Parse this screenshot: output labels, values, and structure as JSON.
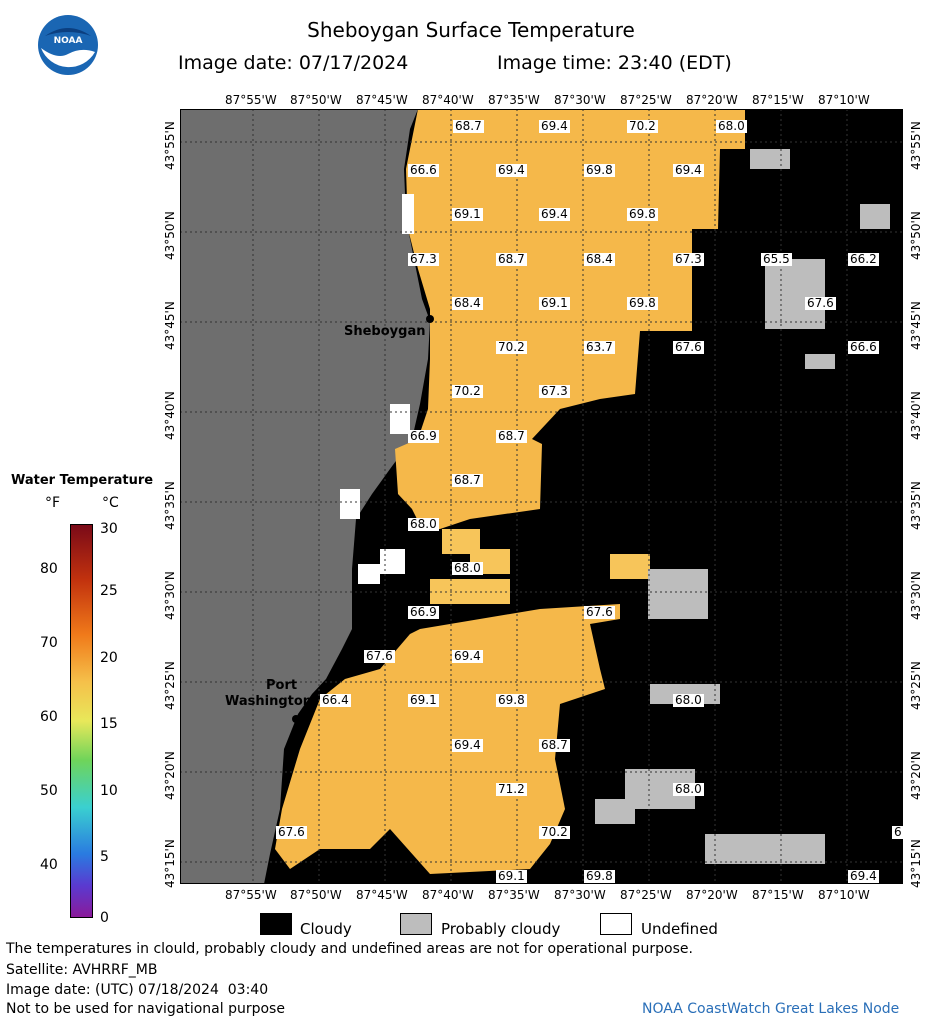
{
  "header": {
    "logo_text": "NOAA",
    "title": "Sheboygan Surface Temperature",
    "image_date": "Image date: 07/17/2024",
    "image_time": "Image time: 23:40 (EDT)"
  },
  "map": {
    "lon_labels": [
      "87°55'W",
      "87°50'W",
      "87°45'W",
      "87°40'W",
      "87°35'W",
      "87°30'W",
      "87°25'W",
      "87°20'W",
      "87°15'W",
      "87°10'W"
    ],
    "lat_labels": [
      "43°55'N",
      "43°50'N",
      "43°45'N",
      "43°40'N",
      "43°35'N",
      "43°30'N",
      "43°25'N",
      "43°20'N",
      "43°15'N"
    ],
    "cities": {
      "sheboygan": "Sheboygan",
      "port_washington_1": "Port",
      "port_washington_2": "Washington"
    },
    "temperature_labels": [
      "68.7",
      "69.4",
      "70.2",
      "68.0",
      "66.6",
      "69.4",
      "69.8",
      "69.4",
      "69.1",
      "69.4",
      "69.8",
      "67.3",
      "68.7",
      "68.4",
      "67.3",
      "65.5",
      "66.2",
      "68.4",
      "69.1",
      "69.8",
      "67.6",
      "70.2",
      "63.7",
      "67.6",
      "66.6",
      "70.2",
      "67.3",
      "66.9",
      "68.7",
      "68.7",
      "68.0",
      "68.0",
      "66.9",
      "67.6",
      "67.6",
      "69.4",
      "66.4",
      "69.1",
      "69.8",
      "68.0",
      "69.4",
      "68.7",
      "71.2",
      "68.0",
      "67.6",
      "70.2",
      "69.1",
      "69.8",
      "69.4",
      "6"
    ]
  },
  "legend": {
    "title": "Water Temperature",
    "unit_f": "°F",
    "unit_c": "°C",
    "f_ticks": [
      "80",
      "70",
      "60",
      "50",
      "40"
    ],
    "c_ticks": [
      "30",
      "25",
      "20",
      "15",
      "10",
      "5",
      "0"
    ],
    "colors": [
      "#7a0a18",
      "#c2320e",
      "#f07a1a",
      "#f5c04a",
      "#e8e85a",
      "#6fd45a",
      "#3ad0d0",
      "#2a7ae0",
      "#5a3ad0",
      "#8a1a9a"
    ]
  },
  "key": {
    "cloudy": "Cloudy",
    "probably_cloudy": "Probably cloudy",
    "undefined": "Undefined",
    "cloudy_color": "#000000",
    "probably_cloudy_color": "#bdbdbd",
    "undefined_color": "#ffffff"
  },
  "footer": {
    "disclaimer": "The temperatures in clould, probably cloudy and undefined areas are not for operational purpose.",
    "satellite": "Satellite: AVHRRF_MB",
    "utc_date": "Image date: (UTC) 07/18/2024  03:40",
    "nav_warning": "Not to be used for navigational purpose",
    "credit": "NOAA CoastWatch Great Lakes Node"
  }
}
